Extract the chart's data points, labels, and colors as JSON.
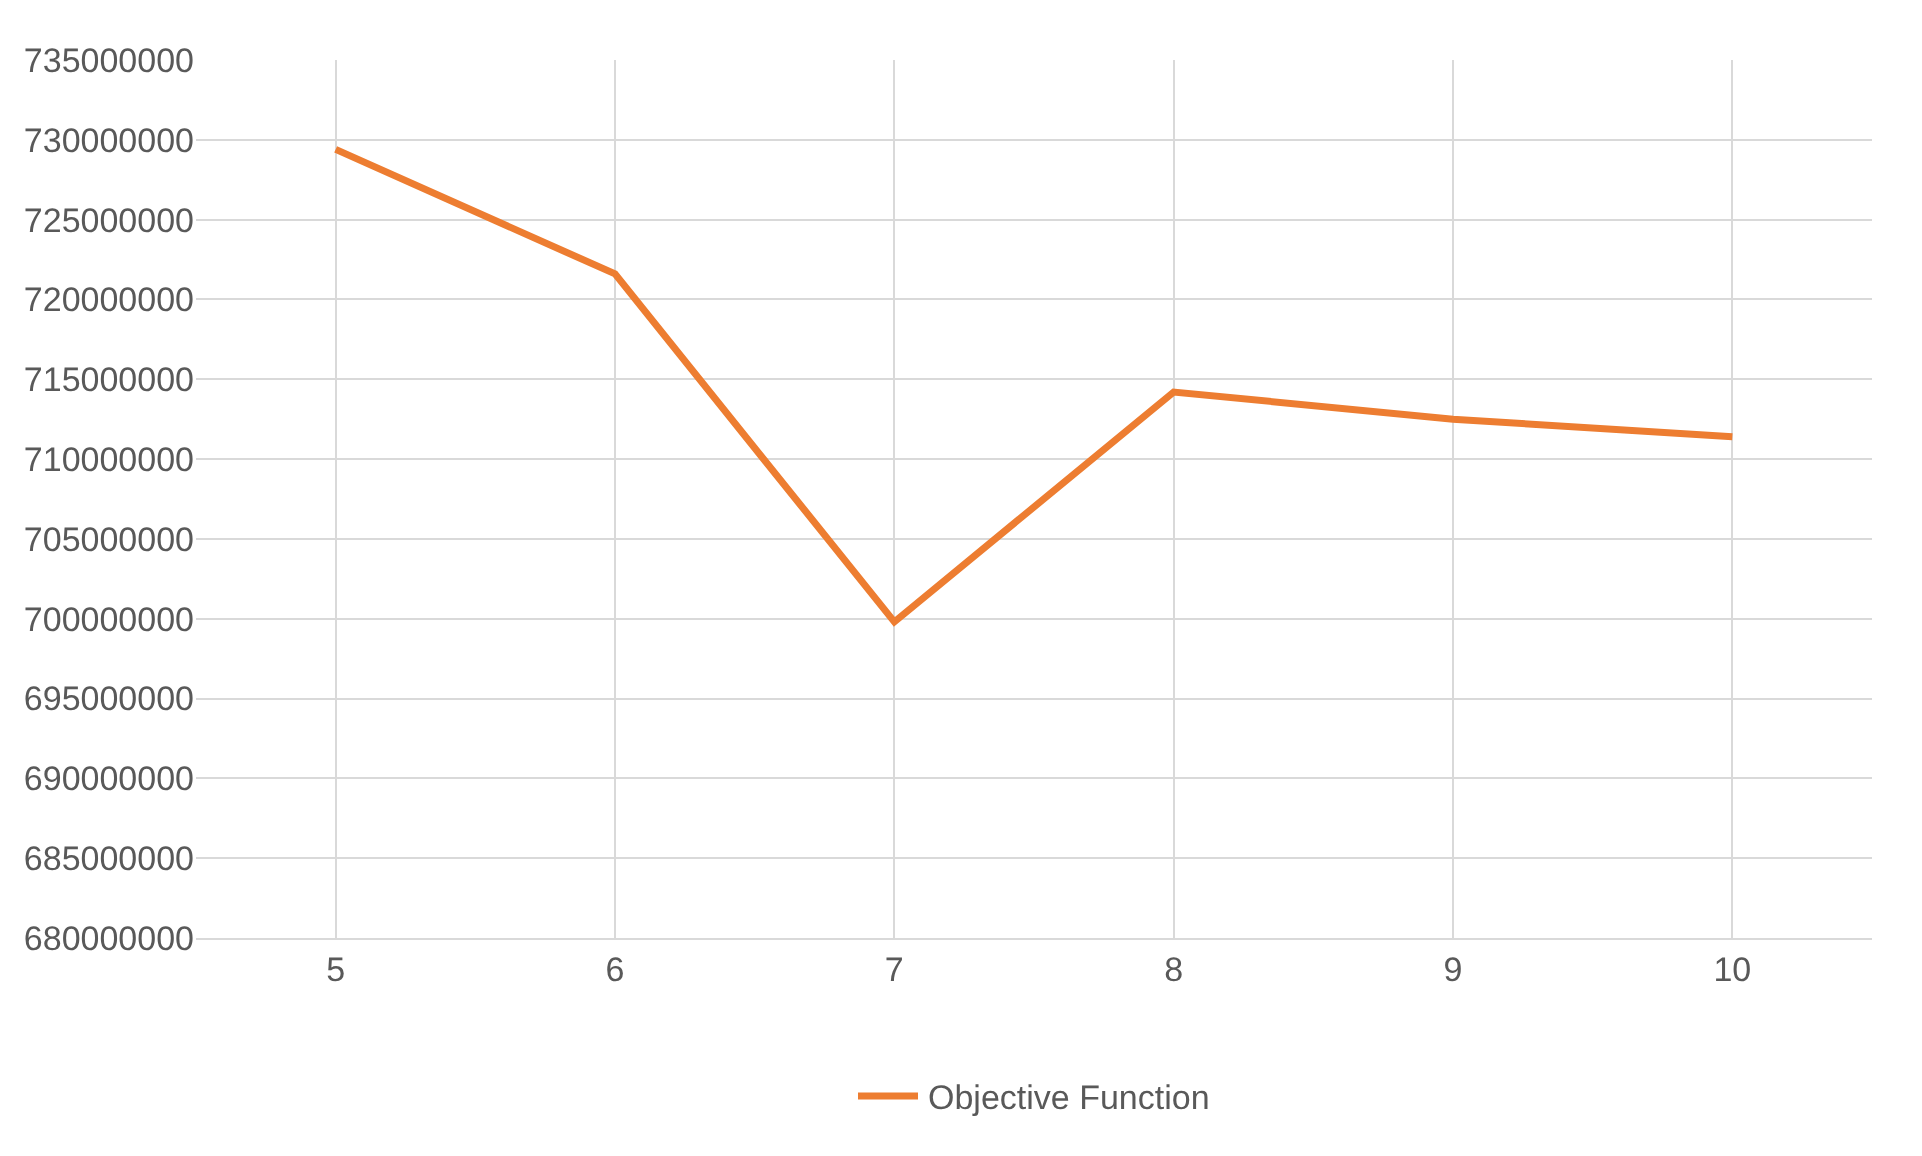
{
  "chart_data": {
    "type": "line",
    "categories": [
      "5",
      "6",
      "7",
      "8",
      "9",
      "10"
    ],
    "series": [
      {
        "name": "Objective Function",
        "color": "#ed7d31",
        "values": [
          729400000,
          721600000,
          699800000,
          714200000,
          712500000,
          711400000
        ]
      }
    ],
    "ylim": [
      680000000,
      735000000
    ],
    "yticks": [
      680000000,
      685000000,
      690000000,
      695000000,
      700000000,
      705000000,
      710000000,
      715000000,
      720000000,
      725000000,
      730000000,
      735000000
    ],
    "grid": true,
    "legend": "bottom",
    "marker": "none",
    "line_style": "solid"
  }
}
